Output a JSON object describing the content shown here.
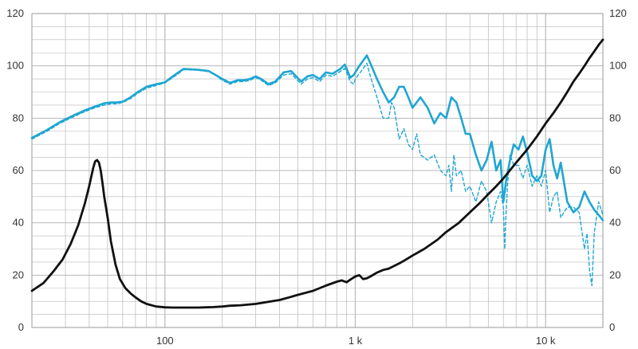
{
  "chart_data": {
    "type": "line",
    "title": "",
    "xlabel": "",
    "ylabel": "",
    "x_scale": "log",
    "xlim": [
      20,
      20000
    ],
    "ylim": [
      0,
      120
    ],
    "grid": true,
    "y_ticks": [
      0,
      20,
      40,
      60,
      80,
      100,
      120
    ],
    "y_tick_labels_left": [
      "0",
      "20",
      "40",
      "60",
      "80",
      "100",
      "120"
    ],
    "y_tick_labels_right": [
      "0",
      "20",
      "40",
      "60",
      "80",
      "100",
      "120"
    ],
    "x_ticks": [
      100,
      1000,
      10000
    ],
    "x_tick_labels": [
      "100",
      "1 k",
      "10 k"
    ],
    "colors": {
      "on_axis": "#1fa6d2",
      "off_axis": "#1fa6d2",
      "impedance": "#111111",
      "grid": "#b8b8b8",
      "frame": "#9a9a9a"
    },
    "series": [
      {
        "key": "on_axis",
        "style": "solid",
        "x": [
          20,
          24,
          28,
          33,
          38,
          43,
          48,
          52,
          56,
          60,
          66,
          72,
          80,
          90,
          100,
          110,
          115,
          125,
          135,
          150,
          170,
          185,
          200,
          220,
          240,
          260,
          280,
          300,
          320,
          350,
          380,
          420,
          460,
          520,
          560,
          600,
          650,
          700,
          760,
          800,
          840,
          880,
          900,
          940,
          980,
          1000,
          1050,
          1100,
          1150,
          1200,
          1300,
          1400,
          1500,
          1600,
          1700,
          1800,
          1900,
          2000,
          2100,
          2200,
          2400,
          2600,
          2800,
          3000,
          3200,
          3400,
          3600,
          3800,
          4000,
          4300,
          4600,
          4900,
          5200,
          5500,
          5800,
          6000,
          6200,
          6500,
          6800,
          7200,
          7600,
          8000,
          8500,
          9000,
          9500,
          10000,
          10500,
          11000,
          11500,
          12000,
          13000,
          14000,
          15000,
          16000,
          17000,
          18000,
          19000,
          20000
        ],
        "y": [
          72.5,
          75.5,
          78.5,
          81,
          83,
          84.5,
          85.7,
          86,
          86,
          86.3,
          88,
          90,
          92,
          93,
          93.7,
          96,
          97,
          98.8,
          98.7,
          98.5,
          98,
          96.5,
          95,
          93.5,
          94.5,
          94.5,
          95,
          96,
          95,
          93,
          94,
          97.5,
          98,
          94,
          96,
          96.5,
          95,
          97.5,
          97,
          98,
          99,
          100.5,
          99,
          95.5,
          96.5,
          97.5,
          100,
          102,
          104,
          101,
          95,
          90,
          86,
          88,
          92,
          92,
          88,
          84,
          86,
          88,
          84,
          78,
          82,
          80,
          88,
          86,
          80,
          74,
          74,
          66,
          60,
          64,
          71,
          60,
          64,
          48,
          56,
          64,
          70,
          68,
          73,
          67,
          58,
          56,
          58,
          68,
          72,
          62,
          57,
          63,
          48,
          44,
          46,
          52,
          48,
          45,
          43,
          41
        ]
      },
      {
        "key": "off_axis",
        "style": "dashed",
        "x": [
          20,
          24,
          28,
          33,
          38,
          43,
          48,
          52,
          56,
          60,
          66,
          72,
          80,
          90,
          100,
          110,
          115,
          125,
          135,
          150,
          170,
          185,
          200,
          220,
          240,
          260,
          280,
          300,
          320,
          350,
          380,
          420,
          460,
          520,
          560,
          600,
          650,
          700,
          760,
          800,
          840,
          880,
          900,
          940,
          980,
          1000,
          1050,
          1100,
          1150,
          1200,
          1300,
          1400,
          1500,
          1550,
          1600,
          1700,
          1800,
          1900,
          2000,
          2100,
          2200,
          2400,
          2600,
          2800,
          3000,
          3100,
          3200,
          3300,
          3400,
          3600,
          3800,
          4000,
          4300,
          4600,
          4900,
          5200,
          5500,
          5800,
          6000,
          6100,
          6200,
          6300,
          6500,
          6800,
          7200,
          7600,
          8000,
          8500,
          9000,
          9500,
          10000,
          10500,
          11000,
          11500,
          12000,
          13000,
          14000,
          15000,
          16000,
          16500,
          17000,
          17500,
          18000,
          19000,
          20000
        ],
        "y": [
          72,
          75,
          78,
          80.5,
          82.5,
          84,
          85,
          85.5,
          85.5,
          86,
          87.5,
          89.5,
          91.5,
          92.5,
          93.5,
          95.5,
          96.5,
          98.5,
          98.5,
          98.3,
          97.8,
          96.3,
          94.5,
          93,
          94,
          94,
          94.5,
          95.5,
          94.5,
          92.5,
          93.5,
          96.5,
          97,
          93,
          95,
          95.5,
          94,
          96.5,
          96,
          97,
          98,
          99,
          97.5,
          94,
          93,
          95,
          97,
          99,
          101,
          96,
          88,
          80,
          80,
          86,
          84,
          72,
          76,
          70,
          68,
          74,
          66,
          64,
          66,
          60,
          58,
          62,
          52,
          66,
          58,
          60,
          52,
          54,
          48,
          56,
          52,
          40,
          48,
          52,
          46,
          30,
          44,
          54,
          66,
          62,
          62,
          57,
          62,
          54,
          58,
          54,
          60,
          44,
          50,
          52,
          42,
          46,
          46,
          44,
          30,
          36,
          22,
          16,
          36,
          48,
          43
        ]
      },
      {
        "key": "impedance",
        "style": "solid",
        "x": [
          20,
          23,
          26,
          29,
          32,
          35,
          38,
          40,
          42,
          43,
          44,
          45,
          46,
          47,
          48,
          50,
          52,
          55,
          58,
          62,
          66,
          70,
          75,
          80,
          90,
          100,
          110,
          130,
          150,
          180,
          200,
          220,
          250,
          300,
          350,
          400,
          450,
          500,
          600,
          700,
          800,
          850,
          900,
          950,
          1000,
          1050,
          1100,
          1150,
          1200,
          1300,
          1400,
          1500,
          1600,
          1700,
          1800,
          2000,
          2300,
          2700,
          3000,
          3500,
          4000,
          4500,
          5000,
          5500,
          6000,
          7000,
          8000,
          9000,
          10000,
          11000,
          12000,
          13000,
          14000,
          15000,
          16000,
          17000,
          18000,
          19000,
          20000
        ],
        "y": [
          14,
          17,
          21.5,
          26,
          32,
          39,
          47.5,
          54,
          61,
          63.5,
          64,
          63,
          60,
          55,
          50,
          42,
          33,
          24,
          18.5,
          15,
          13,
          11.5,
          10,
          9,
          8,
          7.7,
          7.6,
          7.6,
          7.6,
          7.8,
          8,
          8.3,
          8.5,
          9,
          9.8,
          10.5,
          11.5,
          12.5,
          14,
          16,
          17.5,
          18,
          17.3,
          18.5,
          19.5,
          20,
          18.5,
          18.8,
          19.5,
          21,
          22,
          22.5,
          23.5,
          24.5,
          25.5,
          27.5,
          30,
          33.5,
          36.5,
          40,
          44,
          47.5,
          51,
          54,
          57,
          63,
          68,
          73,
          78,
          82,
          86,
          90,
          94,
          97,
          100,
          103,
          105.5,
          108,
          110
        ]
      }
    ]
  }
}
